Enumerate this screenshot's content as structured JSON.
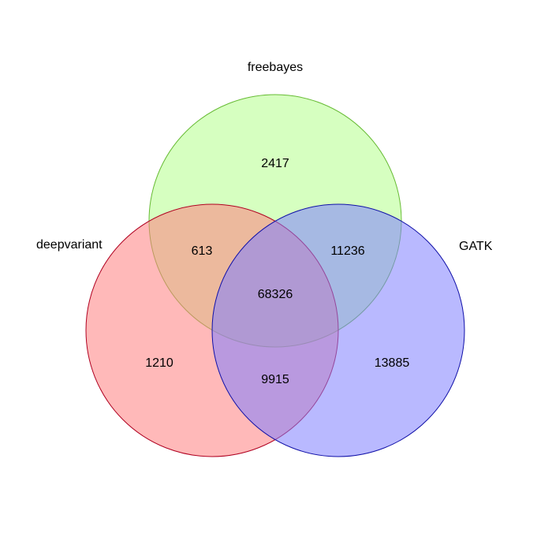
{
  "venn": {
    "sets": [
      {
        "id": "freebayes",
        "label": "freebayes",
        "fill": "#b5ff8c",
        "stroke": "#66bb33"
      },
      {
        "id": "deepvariant",
        "label": "deepvariant",
        "fill": "#ff8080",
        "stroke": "#b00020"
      },
      {
        "id": "gatk",
        "label": "GATK",
        "fill": "#8080ff",
        "stroke": "#1010a8"
      }
    ],
    "regions": {
      "freebayes_only": "2417",
      "deepvariant_only": "1210",
      "gatk_only": "13885",
      "freebayes_deepvariant": "613",
      "freebayes_gatk": "11236",
      "deepvariant_gatk": "9915",
      "all_three": "68326"
    }
  }
}
